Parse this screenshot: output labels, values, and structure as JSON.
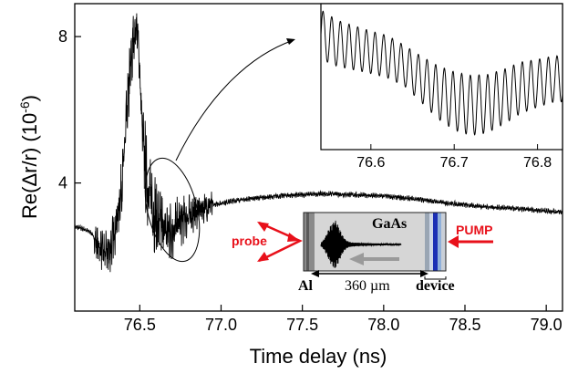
{
  "chart_data": {
    "type": "line",
    "main": {
      "xlabel": "Time delay (ns)",
      "ylabel": "Re(Δr/r) (10",
      "ylabel_sup": "-6",
      "ylabel_close": ")",
      "xlim": [
        76.1,
        79.1
      ],
      "ylim": [
        0.5,
        8.9
      ],
      "x_ticks": [
        76.5,
        77.0,
        77.5,
        78.0,
        78.5,
        79.0
      ],
      "x_tick_labels": [
        "76.5",
        "77.0",
        "77.5",
        "78.0",
        "78.5",
        "79.0"
      ],
      "y_ticks": [
        4,
        8
      ],
      "y_tick_labels": [
        "4",
        "8"
      ],
      "series": [
        {
          "x": [
            76.1,
            76.15,
            76.2,
            76.23,
            76.26,
            76.28,
            76.3,
            76.32,
            76.34,
            76.36,
            76.38,
            76.4,
            76.42,
            76.44,
            76.46,
            76.48,
            76.49,
            76.5,
            76.51,
            76.52,
            76.54,
            76.56,
            76.58,
            76.6,
            76.62,
            76.64,
            76.66,
            76.68,
            76.7,
            76.72,
            76.75,
            76.78,
            76.82,
            76.86,
            76.9,
            76.95,
            77.0,
            77.1,
            77.2,
            77.3,
            77.4,
            77.5,
            77.6,
            77.7,
            77.8,
            77.9,
            78.0,
            78.1,
            78.2,
            78.3,
            78.4,
            78.5,
            78.6,
            78.7,
            78.8,
            78.9,
            79.0,
            79.1
          ],
          "y": [
            2.8,
            2.75,
            2.65,
            2.4,
            2.2,
            2.1,
            2.1,
            2.2,
            2.6,
            3.0,
            3.6,
            4.5,
            5.8,
            7.0,
            7.8,
            8.3,
            7.9,
            7.0,
            6.0,
            5.0,
            4.2,
            3.7,
            3.3,
            3.1,
            2.9,
            2.8,
            2.7,
            2.65,
            2.7,
            2.8,
            2.95,
            3.05,
            3.15,
            3.25,
            3.33,
            3.4,
            3.45,
            3.53,
            3.58,
            3.62,
            3.66,
            3.68,
            3.7,
            3.7,
            3.68,
            3.66,
            3.64,
            3.6,
            3.56,
            3.5,
            3.45,
            3.4,
            3.36,
            3.33,
            3.3,
            3.27,
            3.24,
            3.2
          ]
        }
      ]
    },
    "inset": {
      "xlim": [
        76.54,
        76.83
      ],
      "x_ticks": [
        76.6,
        76.7,
        76.8
      ],
      "x_tick_labels": [
        "76.6",
        "76.7",
        "76.8"
      ],
      "oscillation_period_ns": 0.0104,
      "series": [
        {
          "x": [
            76.54,
            76.56,
            76.58,
            76.6,
            76.62,
            76.64,
            76.66,
            76.68,
            76.7,
            76.72,
            76.74,
            76.76,
            76.78,
            76.8,
            76.82,
            76.83
          ],
          "y": [
            3.6,
            3.5,
            3.45,
            3.4,
            3.35,
            3.25,
            3.1,
            2.95,
            2.85,
            2.8,
            2.82,
            2.9,
            3.0,
            3.05,
            3.1,
            3.1
          ],
          "amplitude": [
            0.28,
            0.26,
            0.25,
            0.24,
            0.24,
            0.23,
            0.26,
            0.3,
            0.33,
            0.34,
            0.33,
            0.31,
            0.29,
            0.27,
            0.26,
            0.26
          ]
        }
      ]
    },
    "annotations": {
      "gaas": "GaAs",
      "al": "Al",
      "thickness": "360 µm",
      "device": "device",
      "probe": "probe",
      "pump": "PUMP"
    },
    "colors": {
      "trace": "#000000",
      "probe": "#e8101a",
      "pump": "#e8101a",
      "sample_fill": "#d6d6d6",
      "device_blue": "#1b2fb5"
    }
  }
}
